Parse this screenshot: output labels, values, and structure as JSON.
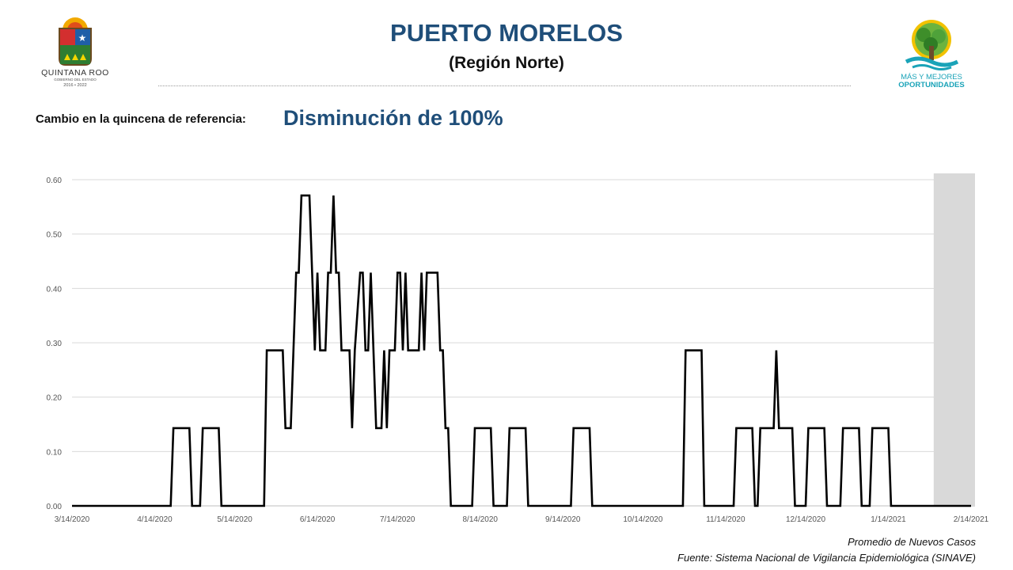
{
  "header": {
    "title": "PUERTO MORELOS",
    "subtitle": "(Región Norte)"
  },
  "change": {
    "label": "Cambio en la quincena de referencia:",
    "value": "Disminución de 100%"
  },
  "logos": {
    "left": {
      "name": "QUINTANA ROO",
      "subtext": "GOBIERNO DEL ESTADO",
      "years": "2016 • 2022"
    },
    "right": {
      "line1": "MÁS Y MEJORES",
      "line2": "OPORTUNIDADES"
    }
  },
  "notes": {
    "series_label": "Promedio de Nuevos Casos",
    "source": "Fuente: Sistema Nacional de Vigilancia Epidemiológica (SINAVE)"
  },
  "colors": {
    "title_blue": "#1f4e79",
    "line": "#000000",
    "grid": "#d9d9d9",
    "shade": "#d9d9d9",
    "teal": "#1aa3b8"
  },
  "chart_data": {
    "type": "line",
    "x_type": "date",
    "xlim": [
      "2020-03-14",
      "2021-02-14"
    ],
    "ylim": [
      0,
      0.6
    ],
    "yticks": [
      "0.00",
      "0.10",
      "0.20",
      "0.30",
      "0.40",
      "0.50",
      "0.60"
    ],
    "xticks": [
      {
        "date": "2020-03-14",
        "label": "3/14/2020"
      },
      {
        "date": "2020-04-14",
        "label": "4/14/2020"
      },
      {
        "date": "2020-05-14",
        "label": "5/14/2020"
      },
      {
        "date": "2020-06-14",
        "label": "6/14/2020"
      },
      {
        "date": "2020-07-14",
        "label": "7/14/2020"
      },
      {
        "date": "2020-08-14",
        "label": "8/14/2020"
      },
      {
        "date": "2020-09-14",
        "label": "9/14/2020"
      },
      {
        "date": "2020-10-14",
        "label": "10/14/2020"
      },
      {
        "date": "2020-11-14",
        "label": "11/14/2020"
      },
      {
        "date": "2020-12-14",
        "label": "12/14/2020"
      },
      {
        "date": "2021-01-14",
        "label": "1/14/2021"
      },
      {
        "date": "2021-02-14",
        "label": "2/14/2021"
      }
    ],
    "grid": true,
    "shaded_region": [
      "2021-01-31",
      "2021-02-14"
    ],
    "series": [
      {
        "name": "Promedio de Nuevos Casos",
        "points": [
          [
            "2020-03-14",
            0
          ],
          [
            "2020-04-20",
            0
          ],
          [
            "2020-04-21",
            0.143
          ],
          [
            "2020-04-27",
            0.143
          ],
          [
            "2020-04-28",
            0
          ],
          [
            "2020-05-01",
            0
          ],
          [
            "2020-05-02",
            0.143
          ],
          [
            "2020-05-08",
            0.143
          ],
          [
            "2020-05-09",
            0
          ],
          [
            "2020-05-25",
            0
          ],
          [
            "2020-05-26",
            0.286
          ],
          [
            "2020-06-01",
            0.286
          ],
          [
            "2020-06-02",
            0.143
          ],
          [
            "2020-06-04",
            0.143
          ],
          [
            "2020-06-05",
            0.286
          ],
          [
            "2020-06-06",
            0.429
          ],
          [
            "2020-06-07",
            0.429
          ],
          [
            "2020-06-08",
            0.571
          ],
          [
            "2020-06-11",
            0.571
          ],
          [
            "2020-06-12",
            0.429
          ],
          [
            "2020-06-13",
            0.286
          ],
          [
            "2020-06-14",
            0.429
          ],
          [
            "2020-06-15",
            0.286
          ],
          [
            "2020-06-17",
            0.286
          ],
          [
            "2020-06-18",
            0.429
          ],
          [
            "2020-06-19",
            0.429
          ],
          [
            "2020-06-20",
            0.571
          ],
          [
            "2020-06-21",
            0.429
          ],
          [
            "2020-06-22",
            0.429
          ],
          [
            "2020-06-23",
            0.286
          ],
          [
            "2020-06-26",
            0.286
          ],
          [
            "2020-06-27",
            0.143
          ],
          [
            "2020-06-28",
            0.286
          ],
          [
            "2020-06-30",
            0.429
          ],
          [
            "2020-07-01",
            0.429
          ],
          [
            "2020-07-02",
            0.286
          ],
          [
            "2020-07-03",
            0.286
          ],
          [
            "2020-07-04",
            0.429
          ],
          [
            "2020-07-05",
            0.286
          ],
          [
            "2020-07-06",
            0.143
          ],
          [
            "2020-07-08",
            0.143
          ],
          [
            "2020-07-09",
            0.286
          ],
          [
            "2020-07-10",
            0.143
          ],
          [
            "2020-07-11",
            0.286
          ],
          [
            "2020-07-13",
            0.286
          ],
          [
            "2020-07-14",
            0.429
          ],
          [
            "2020-07-15",
            0.429
          ],
          [
            "2020-07-16",
            0.286
          ],
          [
            "2020-07-17",
            0.429
          ],
          [
            "2020-07-18",
            0.286
          ],
          [
            "2020-07-22",
            0.286
          ],
          [
            "2020-07-23",
            0.429
          ],
          [
            "2020-07-24",
            0.286
          ],
          [
            "2020-07-25",
            0.429
          ],
          [
            "2020-07-29",
            0.429
          ],
          [
            "2020-07-30",
            0.286
          ],
          [
            "2020-07-31",
            0.286
          ],
          [
            "2020-08-01",
            0.143
          ],
          [
            "2020-08-02",
            0.143
          ],
          [
            "2020-08-03",
            0
          ],
          [
            "2020-08-11",
            0
          ],
          [
            "2020-08-12",
            0.143
          ],
          [
            "2020-08-18",
            0.143
          ],
          [
            "2020-08-19",
            0
          ],
          [
            "2020-08-24",
            0
          ],
          [
            "2020-08-25",
            0.143
          ],
          [
            "2020-08-31",
            0.143
          ],
          [
            "2020-09-01",
            0
          ],
          [
            "2020-09-17",
            0
          ],
          [
            "2020-09-18",
            0.143
          ],
          [
            "2020-09-24",
            0.143
          ],
          [
            "2020-09-25",
            0
          ],
          [
            "2020-10-29",
            0
          ],
          [
            "2020-10-30",
            0.286
          ],
          [
            "2020-11-05",
            0.286
          ],
          [
            "2020-11-06",
            0
          ],
          [
            "2020-11-17",
            0
          ],
          [
            "2020-11-18",
            0.143
          ],
          [
            "2020-11-24",
            0.143
          ],
          [
            "2020-11-25",
            0
          ],
          [
            "2020-11-26",
            0
          ],
          [
            "2020-11-27",
            0.143
          ],
          [
            "2020-12-02",
            0.143
          ],
          [
            "2020-12-03",
            0.286
          ],
          [
            "2020-12-04",
            0.143
          ],
          [
            "2020-12-09",
            0.143
          ],
          [
            "2020-12-10",
            0
          ],
          [
            "2020-12-14",
            0
          ],
          [
            "2020-12-15",
            0.143
          ],
          [
            "2020-12-21",
            0.143
          ],
          [
            "2020-12-22",
            0
          ],
          [
            "2020-12-27",
            0
          ],
          [
            "2020-12-28",
            0.143
          ],
          [
            "2021-01-03",
            0.143
          ],
          [
            "2021-01-04",
            0
          ],
          [
            "2021-01-07",
            0
          ],
          [
            "2021-01-08",
            0.143
          ],
          [
            "2021-01-14",
            0.143
          ],
          [
            "2021-01-15",
            0
          ],
          [
            "2021-02-14",
            0
          ]
        ]
      }
    ]
  }
}
